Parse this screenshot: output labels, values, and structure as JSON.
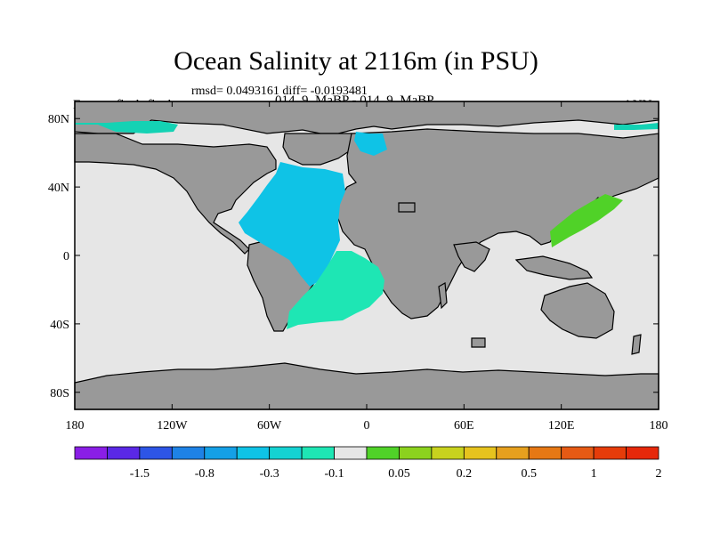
{
  "plot": {
    "title": "Ocean Salinity at 2116m (in PSU)",
    "stats": "rmsd= 0.0493161 diff= -0.0193481",
    "experiment": "Expt = tfksd-tfked",
    "case": "014_9_MaBP - 014_9_MaBP",
    "season": "ANN"
  },
  "axes": {
    "x_ticks": [
      {
        "value": -180,
        "label": "180"
      },
      {
        "value": -120,
        "label": "120W"
      },
      {
        "value": -60,
        "label": "60W"
      },
      {
        "value": 0,
        "label": "0"
      },
      {
        "value": 60,
        "label": "60E"
      },
      {
        "value": 120,
        "label": "120E"
      },
      {
        "value": 180,
        "label": "180"
      }
    ],
    "y_ticks": [
      {
        "value": 80,
        "label": "80N"
      },
      {
        "value": 40,
        "label": "40N"
      },
      {
        "value": 0,
        "label": "0"
      },
      {
        "value": -40,
        "label": "40S"
      },
      {
        "value": -80,
        "label": "80S"
      }
    ],
    "lon_range": [
      -180,
      180
    ],
    "lat_range": [
      -90,
      90
    ]
  },
  "colorbar": {
    "colors": [
      "#8a1ee6",
      "#5a28e6",
      "#2d55e6",
      "#1e82e6",
      "#14a0e6",
      "#0fc3e6",
      "#14d2d2",
      "#1ee6b4",
      "#e6e6e6",
      "#50d228",
      "#8cd21e",
      "#c8d21e",
      "#e6c31e",
      "#e6a01e",
      "#e67814",
      "#e65a14",
      "#e63c0a",
      "#e6280a"
    ],
    "labels": [
      "-1.5",
      "-0.8",
      "-0.3",
      "-0.1",
      "0.05",
      "0.2",
      "0.5",
      "1",
      "2"
    ]
  },
  "legend_colors": {
    "land": "#999999",
    "ocean_near_zero": "#e6e6e6",
    "cyan_positive_shade": "#0fc3e6",
    "teal": "#1ee6b4",
    "arctic_teal": "#14d2b4",
    "green": "#50d228"
  }
}
